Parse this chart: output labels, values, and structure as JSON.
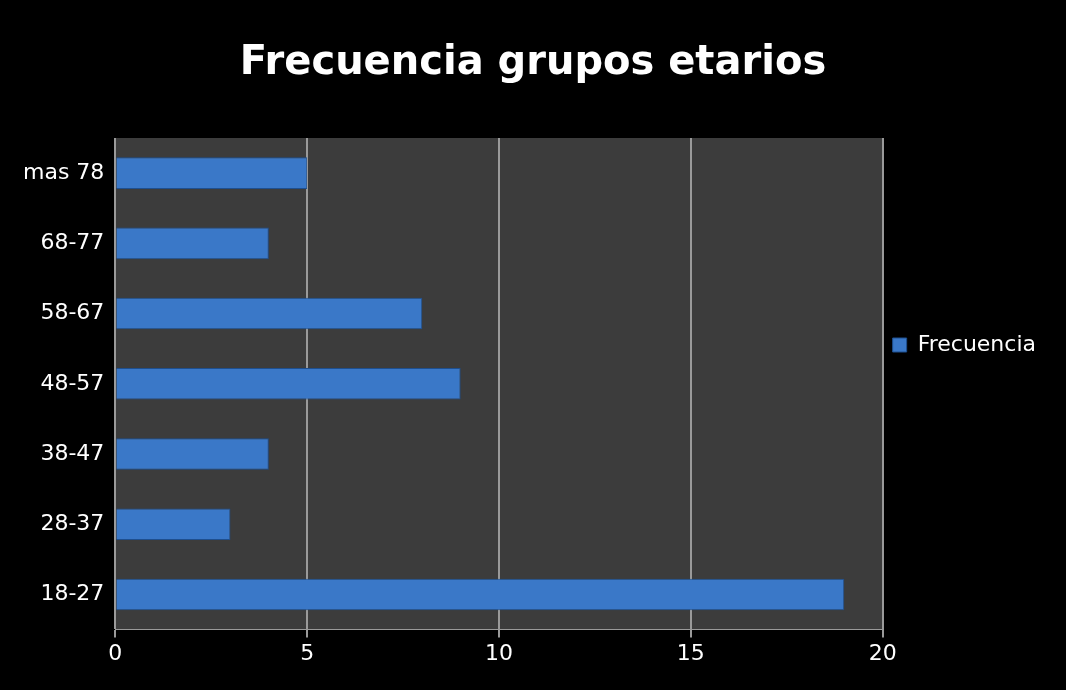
{
  "chart_data": {
    "type": "bar",
    "orientation": "horizontal",
    "title": "Frecuencia grupos etarios",
    "categories": [
      "mas 78",
      "68-77",
      "58-67",
      "48-57",
      "38-47",
      "28-37",
      "18-27"
    ],
    "series": [
      {
        "name": "Frecuencia",
        "color": "#3a78c8",
        "values": [
          5,
          4,
          8,
          9,
          4,
          3,
          19
        ]
      }
    ],
    "xlim": [
      0,
      20
    ],
    "xticks": [
      0,
      5,
      10,
      15,
      20
    ],
    "grid": "x",
    "legend": "right"
  }
}
